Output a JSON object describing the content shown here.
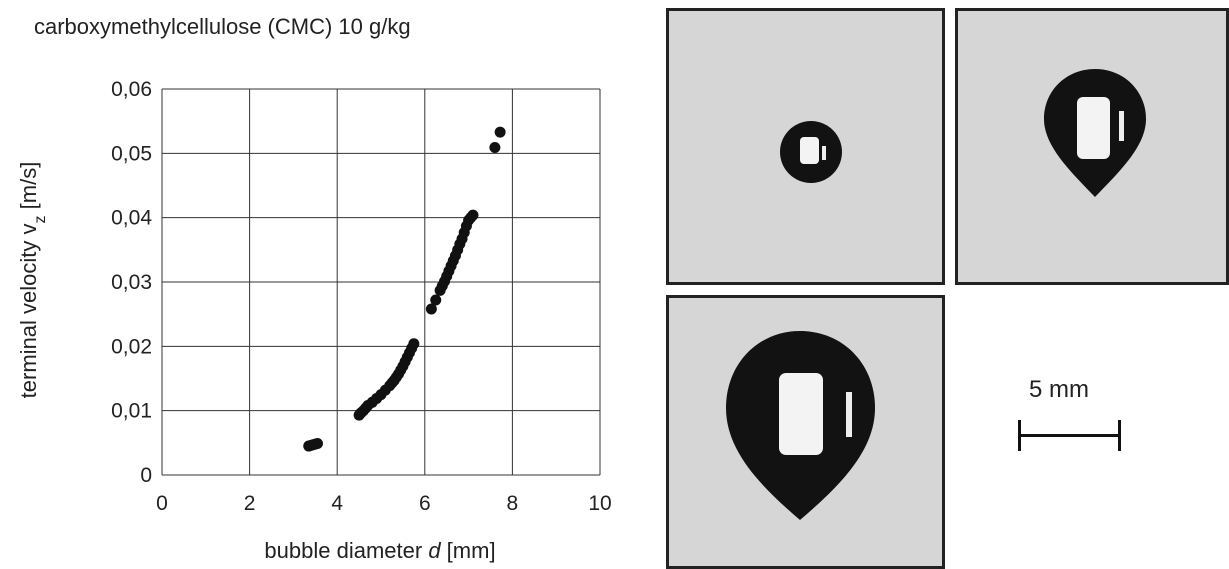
{
  "figure": {
    "title": "carboxymethylcellulose (CMC) 10 g/kg",
    "scale_label": "5 mm"
  },
  "chart_data": {
    "type": "scatter",
    "title": "carboxymethylcellulose (CMC) 10 g/kg",
    "xlabel_prefix": "bubble diameter ",
    "xlabel_italic": "d",
    "xlabel_suffix": " [mm]",
    "ylabel_main": "terminal velocity v",
    "ylabel_sub": "z",
    "ylabel_suffix": " [m/s]",
    "xlim": [
      0,
      10
    ],
    "ylim": [
      0,
      0.06
    ],
    "xticks": [
      "0",
      "2",
      "4",
      "6",
      "8",
      "10"
    ],
    "yticks": [
      "0",
      "0,01",
      "0,02",
      "0,03",
      "0,04",
      "0,05",
      "0,06"
    ],
    "grid": true,
    "marker_color": "#111111",
    "x": [
      3.35,
      3.4,
      3.45,
      3.5,
      3.55,
      4.5,
      4.52,
      4.55,
      4.6,
      4.65,
      4.7,
      4.8,
      4.9,
      5.0,
      5.1,
      5.2,
      5.25,
      5.3,
      5.35,
      5.4,
      5.45,
      5.5,
      5.55,
      5.6,
      5.65,
      5.7,
      5.75,
      6.15,
      6.25,
      6.35,
      6.4,
      6.45,
      6.5,
      6.55,
      6.6,
      6.65,
      6.7,
      6.75,
      6.8,
      6.85,
      6.9,
      6.95,
      7.0,
      7.05,
      7.1,
      7.6,
      7.72
    ],
    "y": [
      0.0045,
      0.0046,
      0.0047,
      0.0048,
      0.0049,
      0.0093,
      0.0095,
      0.0097,
      0.01,
      0.0104,
      0.0108,
      0.0113,
      0.0119,
      0.0125,
      0.0132,
      0.0139,
      0.0143,
      0.0147,
      0.0152,
      0.0157,
      0.0163,
      0.0169,
      0.0176,
      0.0183,
      0.019,
      0.0197,
      0.0204,
      0.0258,
      0.0272,
      0.0287,
      0.0294,
      0.0301,
      0.0309,
      0.0317,
      0.0325,
      0.0333,
      0.0341,
      0.035,
      0.0359,
      0.0367,
      0.0377,
      0.0387,
      0.0396,
      0.04,
      0.0404,
      0.0509,
      0.0533
    ]
  },
  "photos": [
    {
      "name": "bubble-photo-small",
      "bubble_shape": "spherical"
    },
    {
      "name": "bubble-photo-medium",
      "bubble_shape": "teardrop"
    },
    {
      "name": "bubble-photo-large",
      "bubble_shape": "teardrop"
    }
  ],
  "colors": {
    "photo_background": "#d6d6d6",
    "bubble": "#121212",
    "frame": "#222222"
  }
}
